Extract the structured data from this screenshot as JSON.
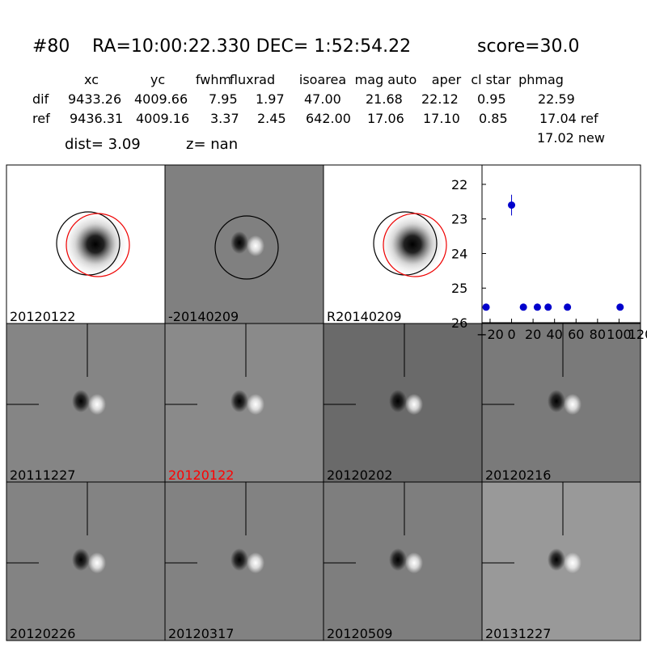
{
  "header": {
    "id": "#80",
    "coords": "RA=10:00:22.330 DEC= 1:52:54.22",
    "score": "score=30.0"
  },
  "table": {
    "columns": [
      "xc",
      "yc",
      "fwhm",
      "fluxrad",
      "isoarea",
      "mag auto",
      "aper",
      "cl star",
      "phmag"
    ],
    "rows": [
      [
        "dif",
        "9433.26",
        "4009.66",
        "7.95",
        "1.97",
        "47.00",
        "21.68",
        "22.12",
        "0.95",
        "22.59"
      ],
      [
        "ref",
        "9436.31",
        "4009.16",
        "3.37",
        "2.45",
        "642.00",
        "17.06",
        "17.10",
        "0.85",
        "17.04 ref"
      ]
    ],
    "extra": "17.02 new"
  },
  "summary": {
    "dist": "dist=  3.09",
    "z": "z=   nan"
  },
  "panels": [
    {
      "label": "20120122",
      "background": "#ffffff",
      "label_color": "#000000"
    },
    {
      "label": "-20140209",
      "background": "#808080",
      "label_color": "#000000"
    },
    {
      "label": "R20140209",
      "background": "#ffffff",
      "label_color": "#000000"
    },
    {
      "label": "20111227",
      "background": "#858585",
      "label_color": "#000000"
    },
    {
      "label": "20120122",
      "background": "#8a8a8a",
      "label_color": "#ff0000"
    },
    {
      "label": "20120202",
      "background": "#6a6a6a",
      "label_color": "#000000"
    },
    {
      "label": "20120216",
      "background": "#7a7a7a",
      "label_color": "#000000"
    },
    {
      "label": "20120226",
      "background": "#838383",
      "label_color": "#000000"
    },
    {
      "label": "20120317",
      "background": "#828282",
      "label_color": "#000000"
    },
    {
      "label": "20120509",
      "background": "#7e7e7e",
      "label_color": "#000000"
    },
    {
      "label": "20131227",
      "background": "#999999",
      "label_color": "#000000"
    }
  ],
  "chart_data": {
    "type": "scatter",
    "color": "#0000cc",
    "x": [
      -23.7,
      0,
      11,
      24,
      34,
      52,
      101
    ],
    "values": [
      25.55,
      22.6,
      25.55,
      25.55,
      25.55,
      25.55,
      25.55
    ],
    "errors": [
      0.05,
      0.3,
      0.05,
      0.05,
      0.05,
      0.05,
      0.05
    ],
    "xlim": [
      -27.5,
      120
    ],
    "ylim": [
      26,
      21.44
    ],
    "xticks": [
      {
        "value": -20,
        "label": "−20"
      },
      0,
      20,
      40,
      60,
      80,
      100,
      120
    ],
    "yticks": [
      22,
      23,
      24,
      25,
      26
    ]
  }
}
